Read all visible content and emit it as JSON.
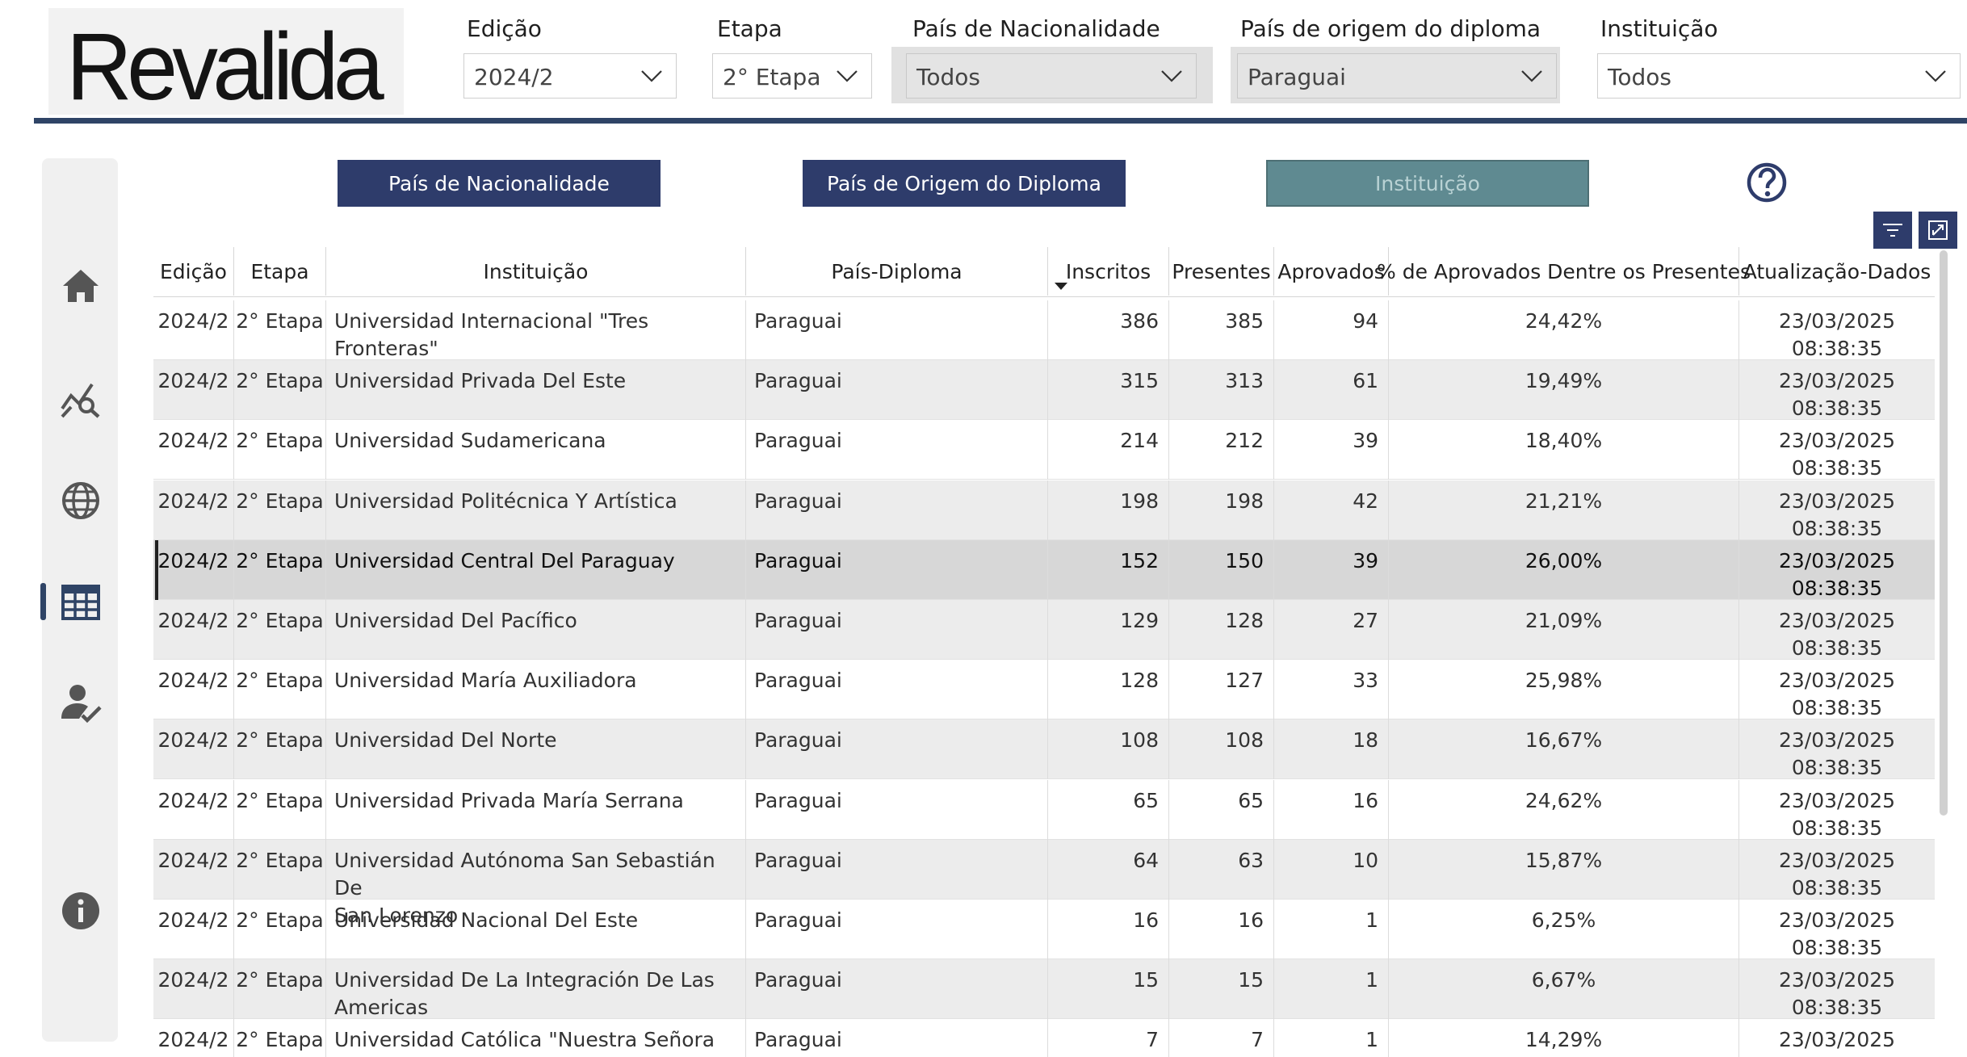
{
  "header": {
    "logo_text": "Revalida",
    "filters": [
      {
        "label": "Edição",
        "value": "2024/2"
      },
      {
        "label": "Etapa",
        "value": "2° Etapa"
      },
      {
        "label": "País de Nacionalidade",
        "value": "Todos"
      },
      {
        "label": "País de origem do diploma",
        "value": "Paraguai"
      },
      {
        "label": "Instituição",
        "value": "Todos"
      }
    ]
  },
  "sidebar": {
    "items": [
      {
        "icon": "home-icon"
      },
      {
        "icon": "chart-search-icon"
      },
      {
        "icon": "globe-icon"
      },
      {
        "icon": "table-icon",
        "active": true
      },
      {
        "icon": "user-check-icon"
      },
      {
        "icon": "info-icon"
      }
    ]
  },
  "nav": {
    "buttons": [
      {
        "label": "País de Nacionalidade"
      },
      {
        "label": "País de Origem do Diploma"
      },
      {
        "label": "Instituição",
        "active": true
      }
    ],
    "help_icon": "help-icon",
    "colors": {
      "dark": "#2e3c6b",
      "active": "#5f8a91",
      "rule": "#2f4466"
    }
  },
  "table": {
    "columns": [
      "Edição",
      "Etapa",
      "Instituição",
      "País-Diploma",
      "Inscritos",
      "Presentes",
      "Aprovados",
      "% de Aprovados Dentre os Presentes",
      "Atualização-Dados"
    ],
    "sorted_column": "Inscritos",
    "rows": [
      {
        "edicao": "2024/2",
        "etapa": "2° Etapa",
        "instituicao": [
          "Universidad Internacional \"Tres Fronteras\""
        ],
        "pais": "Paraguai",
        "inscritos": "386",
        "presentes": "385",
        "aprovados": "94",
        "pct": "24,42%",
        "data": "23/03/2025",
        "hora": "08:38:35"
      },
      {
        "edicao": "2024/2",
        "etapa": "2° Etapa",
        "instituicao": [
          "Universidad Privada Del Este"
        ],
        "pais": "Paraguai",
        "inscritos": "315",
        "presentes": "313",
        "aprovados": "61",
        "pct": "19,49%",
        "data": "23/03/2025",
        "hora": "08:38:35"
      },
      {
        "edicao": "2024/2",
        "etapa": "2° Etapa",
        "instituicao": [
          "Universidad Sudamericana"
        ],
        "pais": "Paraguai",
        "inscritos": "214",
        "presentes": "212",
        "aprovados": "39",
        "pct": "18,40%",
        "data": "23/03/2025",
        "hora": "08:38:35"
      },
      {
        "edicao": "2024/2",
        "etapa": "2° Etapa",
        "instituicao": [
          "Universidad Politécnica Y Artística"
        ],
        "pais": "Paraguai",
        "inscritos": "198",
        "presentes": "198",
        "aprovados": "42",
        "pct": "21,21%",
        "data": "23/03/2025",
        "hora": "08:38:35"
      },
      {
        "edicao": "2024/2",
        "etapa": "2° Etapa",
        "instituicao": [
          "Universidad Central Del Paraguay"
        ],
        "pais": "Paraguai",
        "inscritos": "152",
        "presentes": "150",
        "aprovados": "39",
        "pct": "26,00%",
        "data": "23/03/2025",
        "hora": "08:38:35",
        "selected": true
      },
      {
        "edicao": "2024/2",
        "etapa": "2° Etapa",
        "instituicao": [
          "Universidad Del Pacífico"
        ],
        "pais": "Paraguai",
        "inscritos": "129",
        "presentes": "128",
        "aprovados": "27",
        "pct": "21,09%",
        "data": "23/03/2025",
        "hora": "08:38:35"
      },
      {
        "edicao": "2024/2",
        "etapa": "2° Etapa",
        "instituicao": [
          "Universidad María Auxiliadora"
        ],
        "pais": "Paraguai",
        "inscritos": "128",
        "presentes": "127",
        "aprovados": "33",
        "pct": "25,98%",
        "data": "23/03/2025",
        "hora": "08:38:35"
      },
      {
        "edicao": "2024/2",
        "etapa": "2° Etapa",
        "instituicao": [
          "Universidad Del Norte"
        ],
        "pais": "Paraguai",
        "inscritos": "108",
        "presentes": "108",
        "aprovados": "18",
        "pct": "16,67%",
        "data": "23/03/2025",
        "hora": "08:38:35"
      },
      {
        "edicao": "2024/2",
        "etapa": "2° Etapa",
        "instituicao": [
          "Universidad Privada María Serrana"
        ],
        "pais": "Paraguai",
        "inscritos": "65",
        "presentes": "65",
        "aprovados": "16",
        "pct": "24,62%",
        "data": "23/03/2025",
        "hora": "08:38:35"
      },
      {
        "edicao": "2024/2",
        "etapa": "2° Etapa",
        "instituicao": [
          "Universidad Autónoma San Sebastián De",
          "San Lorenzo"
        ],
        "pais": "Paraguai",
        "inscritos": "64",
        "presentes": "63",
        "aprovados": "10",
        "pct": "15,87%",
        "data": "23/03/2025",
        "hora": "08:38:35"
      },
      {
        "edicao": "2024/2",
        "etapa": "2° Etapa",
        "instituicao": [
          "Universidad Nacional Del Este"
        ],
        "pais": "Paraguai",
        "inscritos": "16",
        "presentes": "16",
        "aprovados": "1",
        "pct": "6,25%",
        "data": "23/03/2025",
        "hora": "08:38:35"
      },
      {
        "edicao": "2024/2",
        "etapa": "2° Etapa",
        "instituicao": [
          "Universidad De La Integración De Las",
          "Americas"
        ],
        "pais": "Paraguai",
        "inscritos": "15",
        "presentes": "15",
        "aprovados": "1",
        "pct": "6,67%",
        "data": "23/03/2025",
        "hora": "08:38:35"
      },
      {
        "edicao": "2024/2",
        "etapa": "2° Etapa",
        "instituicao": [
          "Universidad Católica \"Nuestra Señora De La"
        ],
        "pais": "Paraguai",
        "inscritos": "7",
        "presentes": "7",
        "aprovados": "1",
        "pct": "14,29%",
        "data": "23/03/2025",
        "hora": ""
      }
    ]
  }
}
